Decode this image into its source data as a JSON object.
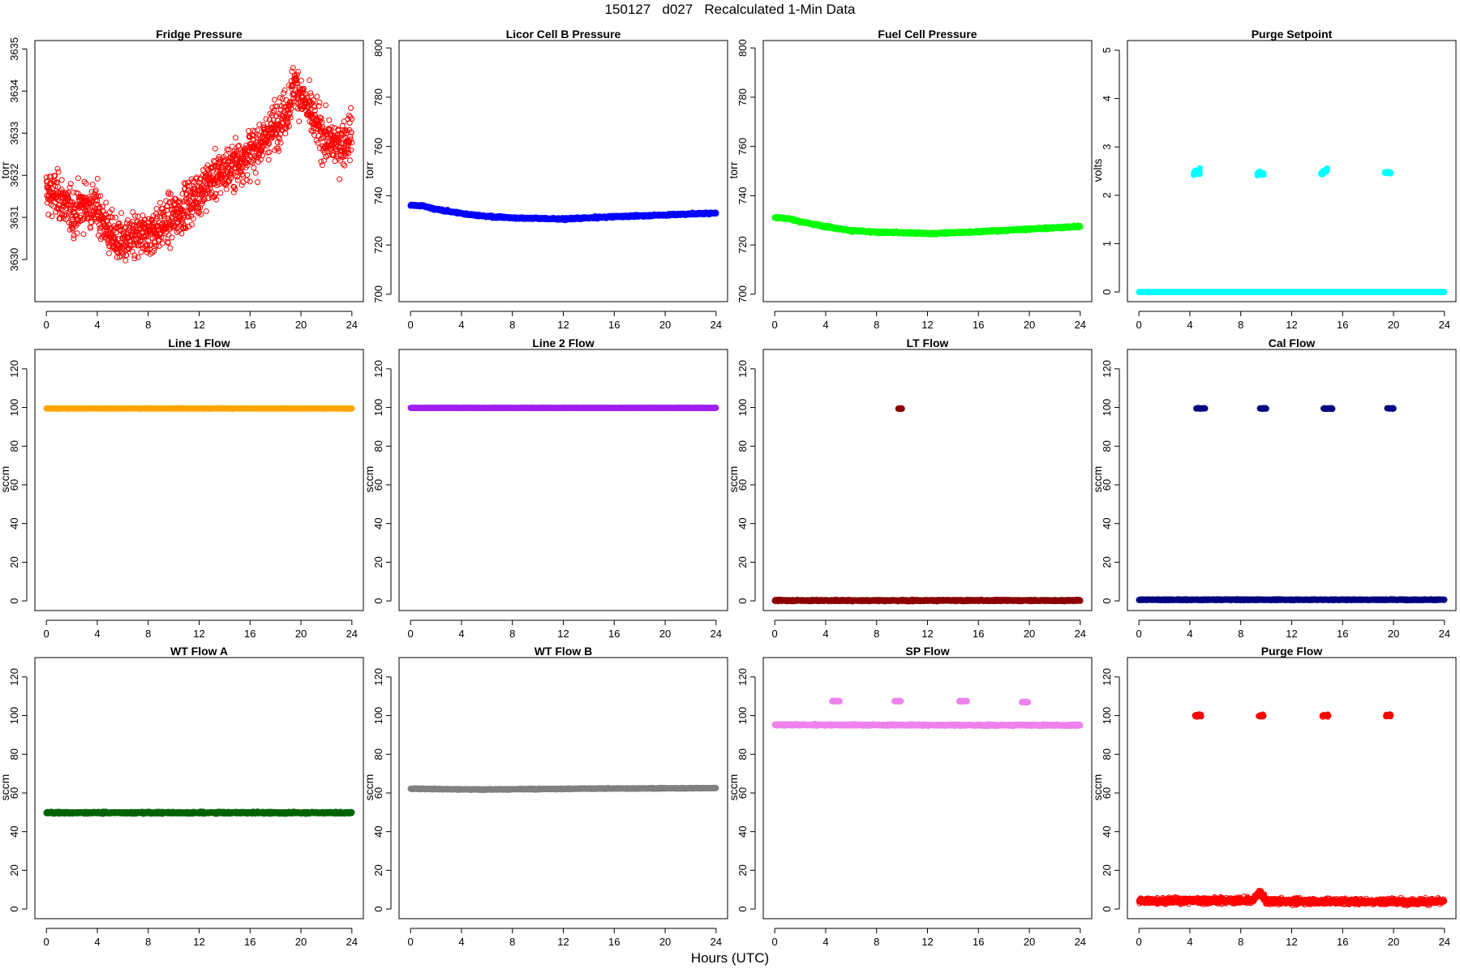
{
  "title": "150127   d027   Recalculated 1-Min Data",
  "x_axis_label": "Hours (UTC)",
  "chart_data": [
    {
      "type": "scatter",
      "title": "Fridge Pressure",
      "ylabel": "torr",
      "color": "#ff0000",
      "marker": "open",
      "xlim": [
        0,
        24
      ],
      "xticks": [
        0,
        4,
        8,
        12,
        16,
        20,
        24
      ],
      "ylim": [
        3629,
        3635.2
      ],
      "yticks": [
        3630,
        3631,
        3632,
        3633,
        3634,
        3635
      ],
      "series": [
        {
          "x": [
            0,
            1,
            2,
            3,
            4,
            5,
            6,
            7,
            8,
            9,
            10,
            11,
            12,
            13,
            14,
            15,
            16,
            17,
            18,
            19,
            19.5,
            20,
            21,
            22,
            23,
            24
          ],
          "y": [
            3631.6,
            3631.5,
            3631.1,
            3631.3,
            3631.2,
            3630.6,
            3630.4,
            3630.5,
            3630.6,
            3630.8,
            3631.0,
            3631.3,
            3631.6,
            3631.9,
            3632.1,
            3632.3,
            3632.5,
            3632.8,
            3633.2,
            3633.6,
            3634.2,
            3633.9,
            3633.3,
            3632.8,
            3632.7,
            3633.0
          ],
          "noise": 0.45
        }
      ]
    },
    {
      "type": "scatter",
      "title": "Licor Cell B Pressure",
      "ylabel": "torr",
      "color": "#0000ff",
      "marker": "filled",
      "xlim": [
        0,
        24
      ],
      "xticks": [
        0,
        4,
        8,
        12,
        16,
        20,
        24
      ],
      "ylim": [
        697,
        803
      ],
      "yticks": [
        700,
        720,
        740,
        760,
        780,
        800
      ],
      "series": [
        {
          "x": [
            0,
            1,
            2,
            4,
            6,
            8,
            10,
            12,
            14,
            16,
            18,
            20,
            22,
            24
          ],
          "y": [
            736.2,
            735.8,
            734.5,
            732.8,
            731.6,
            731.0,
            730.8,
            730.5,
            731.0,
            731.5,
            731.8,
            732.2,
            732.6,
            733.0
          ],
          "noise": 0.3
        }
      ]
    },
    {
      "type": "scatter",
      "title": "Fuel Cell Pressure",
      "ylabel": "torr",
      "color": "#00ff00",
      "marker": "filled",
      "xlim": [
        0,
        24
      ],
      "xticks": [
        0,
        4,
        8,
        12,
        16,
        20,
        24
      ],
      "ylim": [
        697,
        803
      ],
      "yticks": [
        700,
        720,
        740,
        760,
        780,
        800
      ],
      "series": [
        {
          "x": [
            0,
            1,
            2,
            4,
            6,
            8,
            10,
            12,
            14,
            16,
            18,
            20,
            22,
            24
          ],
          "y": [
            731.2,
            730.8,
            729.5,
            727.5,
            725.8,
            725.2,
            725.0,
            724.6,
            725.0,
            725.4,
            725.9,
            726.5,
            727.0,
            727.5
          ],
          "noise": 0.3
        }
      ]
    },
    {
      "type": "scatter",
      "title": "Purge Setpoint",
      "ylabel": "volts",
      "color": "#00ffff",
      "marker": "filled",
      "xlim": [
        0,
        24
      ],
      "xticks": [
        0,
        4,
        8,
        12,
        16,
        20,
        24
      ],
      "ylim": [
        -0.2,
        5.2
      ],
      "yticks": [
        0,
        1,
        2,
        3,
        4,
        5
      ],
      "series": [
        {
          "x": [
            0,
            24
          ],
          "y": [
            0,
            0
          ],
          "noise": 0.0
        },
        {
          "x": [
            4.3,
            4.8
          ],
          "y": [
            2.45,
            2.5
          ],
          "noise": 0.04
        },
        {
          "x": [
            9.3,
            9.8
          ],
          "y": [
            2.45,
            2.45
          ],
          "noise": 0.03
        },
        {
          "x": [
            14.3,
            14.8
          ],
          "y": [
            2.45,
            2.52
          ],
          "noise": 0.04
        },
        {
          "x": [
            19.3,
            19.8
          ],
          "y": [
            2.47,
            2.47
          ],
          "noise": 0.02
        }
      ]
    },
    {
      "type": "scatter",
      "title": "Line 1 Flow",
      "ylabel": "sccm",
      "color": "#ffa500",
      "marker": "filled",
      "xlim": [
        0,
        24
      ],
      "xticks": [
        0,
        4,
        8,
        12,
        16,
        20,
        24
      ],
      "ylim": [
        -5,
        130
      ],
      "yticks": [
        0,
        20,
        40,
        60,
        80,
        100,
        120
      ],
      "series": [
        {
          "x": [
            0,
            24
          ],
          "y": [
            99.5,
            99.5
          ],
          "noise": 0.1
        }
      ]
    },
    {
      "type": "scatter",
      "title": "Line 2 Flow",
      "ylabel": "sccm",
      "color": "#a020f0",
      "marker": "filled",
      "xlim": [
        0,
        24
      ],
      "xticks": [
        0,
        4,
        8,
        12,
        16,
        20,
        24
      ],
      "ylim": [
        -5,
        130
      ],
      "yticks": [
        0,
        20,
        40,
        60,
        80,
        100,
        120
      ],
      "series": [
        {
          "x": [
            0,
            24
          ],
          "y": [
            99.8,
            99.8
          ],
          "noise": 0.1
        }
      ]
    },
    {
      "type": "scatter",
      "title": "LT Flow",
      "ylabel": "sccm",
      "color": "#8b0000",
      "marker": "filled",
      "xlim": [
        0,
        24
      ],
      "xticks": [
        0,
        4,
        8,
        12,
        16,
        20,
        24
      ],
      "ylim": [
        -5,
        130
      ],
      "yticks": [
        0,
        20,
        40,
        60,
        80,
        100,
        120
      ],
      "series": [
        {
          "x": [
            0,
            24
          ],
          "y": [
            0.2,
            0.2
          ],
          "noise": 0.3
        },
        {
          "x": [
            9.7,
            10.0
          ],
          "y": [
            99.5,
            99.5
          ],
          "noise": 0.2
        }
      ]
    },
    {
      "type": "scatter",
      "title": "Cal Flow",
      "ylabel": "sccm",
      "color": "#000080",
      "marker": "filled",
      "xlim": [
        0,
        24
      ],
      "xticks": [
        0,
        4,
        8,
        12,
        16,
        20,
        24
      ],
      "ylim": [
        -5,
        130
      ],
      "yticks": [
        0,
        20,
        40,
        60,
        80,
        100,
        120
      ],
      "series": [
        {
          "x": [
            0,
            24
          ],
          "y": [
            0.6,
            0.6
          ],
          "noise": 0.2
        },
        {
          "x": [
            4.5,
            5.2
          ],
          "y": [
            99.5,
            99.5
          ],
          "noise": 0.2
        },
        {
          "x": [
            9.5,
            10.0
          ],
          "y": [
            99.5,
            99.5
          ],
          "noise": 0.2
        },
        {
          "x": [
            14.5,
            15.2
          ],
          "y": [
            99.5,
            99.5
          ],
          "noise": 0.2
        },
        {
          "x": [
            19.5,
            20.0
          ],
          "y": [
            99.5,
            99.5
          ],
          "noise": 0.2
        }
      ]
    },
    {
      "type": "scatter",
      "title": "WT Flow A",
      "ylabel": "sccm",
      "color": "#006400",
      "marker": "filled",
      "xlim": [
        0,
        24
      ],
      "xticks": [
        0,
        4,
        8,
        12,
        16,
        20,
        24
      ],
      "ylim": [
        -5,
        130
      ],
      "yticks": [
        0,
        20,
        40,
        60,
        80,
        100,
        120
      ],
      "series": [
        {
          "x": [
            0,
            24
          ],
          "y": [
            49.8,
            49.8
          ],
          "noise": 0.4
        }
      ]
    },
    {
      "type": "scatter",
      "title": "WT Flow B",
      "ylabel": "sccm",
      "color": "#808080",
      "marker": "filled",
      "xlim": [
        0,
        24
      ],
      "xticks": [
        0,
        4,
        8,
        12,
        16,
        20,
        24
      ],
      "ylim": [
        -5,
        130
      ],
      "yticks": [
        0,
        20,
        40,
        60,
        80,
        100,
        120
      ],
      "series": [
        {
          "x": [
            0,
            5,
            10,
            15,
            20,
            24
          ],
          "y": [
            62.2,
            61.8,
            62.0,
            62.3,
            62.4,
            62.5
          ],
          "noise": 0.2
        }
      ]
    },
    {
      "type": "scatter",
      "title": "SP Flow",
      "ylabel": "sccm",
      "color": "#ee82ee",
      "marker": "filled",
      "xlim": [
        0,
        24
      ],
      "xticks": [
        0,
        4,
        8,
        12,
        16,
        20,
        24
      ],
      "ylim": [
        -5,
        130
      ],
      "yticks": [
        0,
        20,
        40,
        60,
        80,
        100,
        120
      ],
      "series": [
        {
          "x": [
            0,
            24
          ],
          "y": [
            95.2,
            95.0
          ],
          "noise": 0.3
        },
        {
          "x": [
            4.5,
            5.1
          ],
          "y": [
            107.5,
            107.5
          ],
          "noise": 0.2
        },
        {
          "x": [
            9.4,
            9.9
          ],
          "y": [
            107.5,
            107.5
          ],
          "noise": 0.2
        },
        {
          "x": [
            14.5,
            15.1
          ],
          "y": [
            107.5,
            107.5
          ],
          "noise": 0.2
        },
        {
          "x": [
            19.4,
            19.9
          ],
          "y": [
            107.0,
            107.0
          ],
          "noise": 0.2
        }
      ]
    },
    {
      "type": "scatter",
      "title": "Purge Flow",
      "ylabel": "sccm",
      "color": "#ff0000",
      "marker": "open",
      "xlim": [
        0,
        24
      ],
      "xticks": [
        0,
        4,
        8,
        12,
        16,
        20,
        24
      ],
      "ylim": [
        -5,
        130
      ],
      "yticks": [
        0,
        20,
        40,
        60,
        80,
        100,
        120
      ],
      "series": [
        {
          "x": [
            0,
            9,
            9.5,
            10,
            24
          ],
          "y": [
            4.2,
            4.5,
            9.0,
            4.0,
            3.8
          ],
          "noise": 1.3
        },
        {
          "x": [
            4.4,
            4.9
          ],
          "y": [
            100.0,
            100.0
          ],
          "noise": 0.6
        },
        {
          "x": [
            9.4,
            9.8
          ],
          "y": [
            100.0,
            100.0
          ],
          "noise": 0.6
        },
        {
          "x": [
            14.4,
            14.9
          ],
          "y": [
            100.0,
            100.0
          ],
          "noise": 0.6
        },
        {
          "x": [
            19.4,
            19.8
          ],
          "y": [
            100.0,
            100.0
          ],
          "noise": 0.6
        }
      ]
    }
  ]
}
